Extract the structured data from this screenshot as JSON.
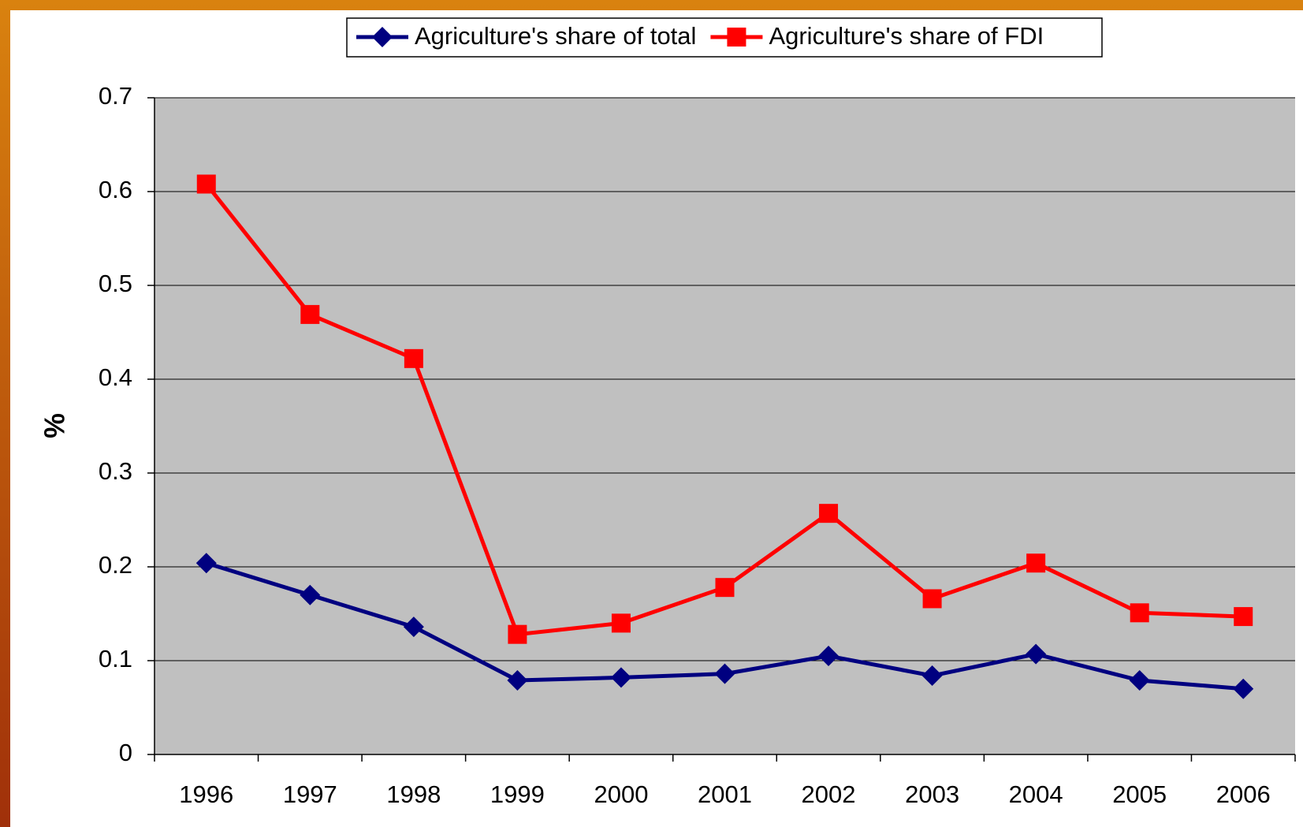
{
  "chart_data": {
    "type": "line",
    "ylabel": "%",
    "categories": [
      "1996",
      "1997",
      "1998",
      "1999",
      "2000",
      "2001",
      "2002",
      "2003",
      "2004",
      "2005",
      "2006"
    ],
    "series": [
      {
        "name": "Agriculture's share of total",
        "color": "#000080",
        "marker": "diamond",
        "values": [
          0.204,
          0.17,
          0.136,
          0.079,
          0.082,
          0.086,
          0.105,
          0.084,
          0.107,
          0.079,
          0.07
        ]
      },
      {
        "name": "Agriculture's share of FDI",
        "color": "#ff0000",
        "marker": "square",
        "values": [
          0.608,
          0.469,
          0.422,
          0.128,
          0.14,
          0.178,
          0.257,
          0.166,
          0.204,
          0.151,
          0.147
        ]
      }
    ],
    "ylim": [
      0,
      0.7
    ],
    "yticks": [
      0,
      0.1,
      0.2,
      0.3,
      0.4,
      0.5,
      0.6,
      0.7
    ],
    "grid": true,
    "plot_background": "#c0c0c0",
    "legend": "top"
  }
}
